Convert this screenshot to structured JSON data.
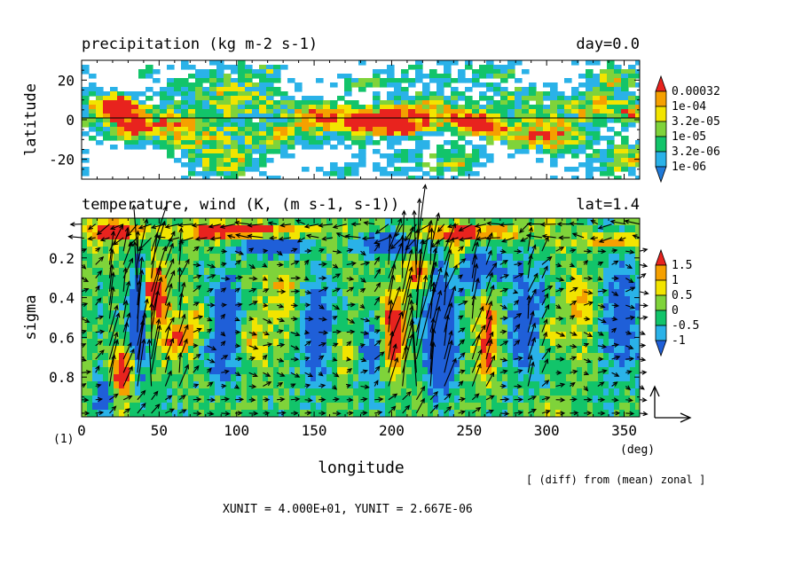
{
  "chart_data": [
    {
      "type": "heatmap",
      "title": "precipitation (kg m-2 s-1)",
      "annotation": "day=0.0",
      "ylabel": "latitude",
      "xlim": [
        0,
        360
      ],
      "ylim": [
        -30,
        30
      ],
      "yticks": [
        "20",
        "0",
        "-20"
      ],
      "ytick_values": [
        20,
        0,
        -20
      ],
      "colorbar": {
        "labels": [
          "0.00032",
          "1e-04",
          "3.2e-05",
          "1e-05",
          "3.2e-06",
          "1e-06"
        ],
        "colors": [
          "#e8231e",
          "#f5a000",
          "#f2e400",
          "#7fd33a",
          "#12c46a",
          "#2ab2e8",
          "#1f7ad8"
        ]
      },
      "field_colors": [
        "#ffffff",
        "#2ab2e8",
        "#12c46a",
        "#7fd33a",
        "#f2e400",
        "#f5a000",
        "#e8231e"
      ]
    },
    {
      "type": "heatmap",
      "title": "temperature, wind (K, (m s-1, s-1))",
      "annotation": "lat=1.4",
      "xlabel": "longitude",
      "xunit": "(deg)",
      "ylabel": "sigma",
      "xlim": [
        0,
        360
      ],
      "ylim": [
        1.0,
        0.0
      ],
      "xticks": [
        "0",
        "50",
        "100",
        "150",
        "200",
        "250",
        "300",
        "350"
      ],
      "xtick_values": [
        0,
        50,
        100,
        150,
        200,
        250,
        300,
        350
      ],
      "yticks": [
        "0.2",
        "0.4",
        "0.6",
        "0.8"
      ],
      "ytick_values": [
        0.2,
        0.4,
        0.6,
        0.8
      ],
      "colorbar": {
        "labels": [
          "1.5",
          "1",
          "0.5",
          "0",
          "-0.5",
          "-1"
        ],
        "colors": [
          "#e8231e",
          "#f5a000",
          "#f2e400",
          "#7fd33a",
          "#12c46a",
          "#2ab2e8",
          "#1f5fd8"
        ]
      },
      "field_colors": [
        "#1f5fd8",
        "#2ab2e8",
        "#12c46a",
        "#7fd33a",
        "#f2e400",
        "#f5a000",
        "#e8231e"
      ],
      "footnote": "[ (diff) from (mean) zonal ]",
      "units_text": "XUNIT = 4.000E+01, YUNIT = 2.667E-06",
      "frame_label": "(1)"
    }
  ],
  "colors": {
    "text": "#000000",
    "background": "#ffffff"
  }
}
